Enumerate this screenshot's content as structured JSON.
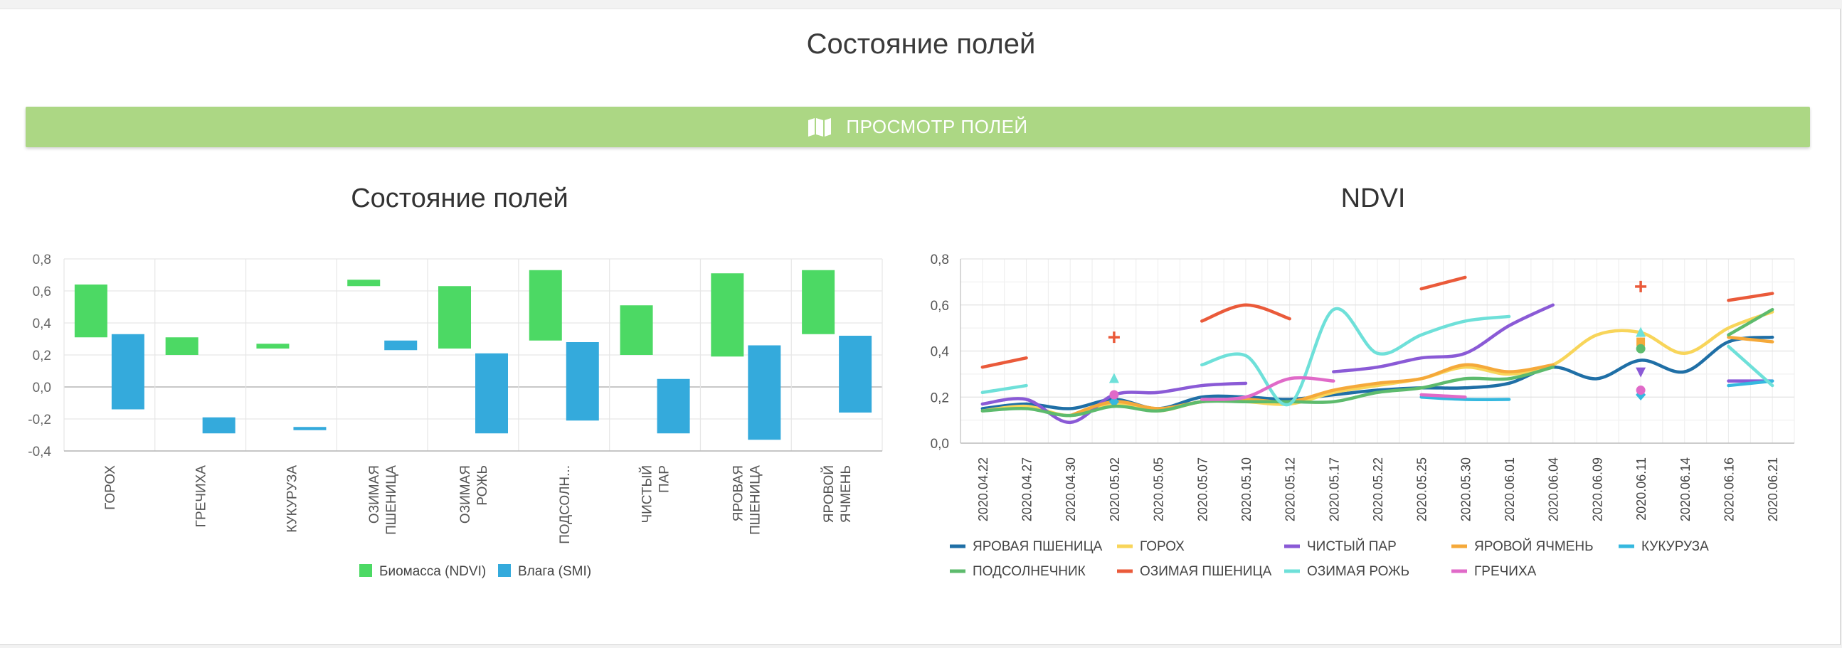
{
  "page_title": "Состояние полей",
  "view_button": {
    "label": "ПРОСМОТР ПОЛЕЙ",
    "icon": "map-icon"
  },
  "chart_data": [
    {
      "type": "bar",
      "title": "Состояние полей",
      "categories": [
        "ГОРОХ",
        "ГРЕЧИХА",
        "КУКУРУЗА",
        "ОЗИМАЯ ПШЕНИЦА",
        "ОЗИМАЯ РОЖЬ",
        "ПОДСОЛН...",
        "ЧИСТЫЙ ПАР",
        "ЯРОВАЯ ПШЕНИЦА",
        "ЯРОВОЙ ЯЧМЕНЬ"
      ],
      "category_lines": [
        [
          "ГОРОХ"
        ],
        [
          "ГРЕЧИХА"
        ],
        [
          "КУКУРУЗА"
        ],
        [
          "ОЗИМАЯ",
          "ПШЕНИЦА"
        ],
        [
          "ОЗИМАЯ",
          "РОЖЬ"
        ],
        [
          "ПОДСОЛН..."
        ],
        [
          "ЧИСТЫЙ",
          "ПАР"
        ],
        [
          "ЯРОВАЯ",
          "ПШЕНИЦА"
        ],
        [
          "ЯРОВОЙ",
          "ЯЧМЕНЬ"
        ]
      ],
      "ylim": [
        -0.4,
        0.8
      ],
      "yticks": [
        "0,8",
        "0,6",
        "0,4",
        "0,2",
        "0,0",
        "-0,2",
        "-0,4"
      ],
      "ytick_values": [
        0.8,
        0.6,
        0.4,
        0.2,
        0.0,
        -0.2,
        -0.4
      ],
      "grid": true,
      "legend_position": "bottom",
      "series": [
        {
          "name": "Биомасса (NDVI)",
          "color": "#4cd964",
          "ranges": [
            [
              0.31,
              0.64
            ],
            [
              0.2,
              0.31
            ],
            [
              0.24,
              0.27
            ],
            [
              0.63,
              0.67
            ],
            [
              0.24,
              0.63
            ],
            [
              0.29,
              0.73
            ],
            [
              0.2,
              0.51
            ],
            [
              0.19,
              0.71
            ],
            [
              0.33,
              0.73
            ]
          ]
        },
        {
          "name": "Влага (SMI)",
          "color": "#34aadc",
          "ranges": [
            [
              -0.14,
              0.33
            ],
            [
              -0.29,
              -0.19
            ],
            [
              -0.27,
              -0.25
            ],
            [
              0.23,
              0.29
            ],
            [
              -0.29,
              0.21
            ],
            [
              -0.21,
              0.28
            ],
            [
              -0.29,
              0.05
            ],
            [
              -0.33,
              0.26
            ],
            [
              -0.16,
              0.32
            ]
          ]
        }
      ]
    },
    {
      "type": "line",
      "title": "NDVI",
      "x": [
        "2020.04.22",
        "2020.04.27",
        "2020.04.30",
        "2020.05.02",
        "2020.05.05",
        "2020.05.07",
        "2020.05.10",
        "2020.05.12",
        "2020.05.17",
        "2020.05.22",
        "2020.05.25",
        "2020.05.30",
        "2020.06.01",
        "2020.06.04",
        "2020.06.09",
        "2020.06.11",
        "2020.06.14",
        "2020.06.16",
        "2020.06.21"
      ],
      "ylim": [
        0,
        0.8
      ],
      "yticks": [
        "0,8",
        "0,6",
        "0,4",
        "0,2",
        "0,0"
      ],
      "ytick_values": [
        0.8,
        0.6,
        0.4,
        0.2,
        0.0
      ],
      "grid": true,
      "legend_position": "bottom",
      "series": [
        {
          "name": "ЯРОВАЯ ПШЕНИЦА",
          "color": "#1f6fa6",
          "marker": "square",
          "values": [
            0.15,
            0.17,
            0.15,
            0.19,
            0.15,
            0.2,
            0.2,
            0.19,
            0.21,
            0.23,
            0.24,
            0.24,
            0.26,
            0.33,
            0.28,
            0.36,
            0.31,
            0.44,
            0.46
          ]
        },
        {
          "name": "ГОРОХ",
          "color": "#f8d55a",
          "marker": "circle",
          "values": [
            0.14,
            0.16,
            0.12,
            0.17,
            0.14,
            0.18,
            0.18,
            0.17,
            0.22,
            0.25,
            0.28,
            0.33,
            0.3,
            0.34,
            0.47,
            0.48,
            0.39,
            0.5,
            0.57
          ]
        },
        {
          "name": "ЧИСТЫЙ ПАР",
          "color": "#8a5ad6",
          "marker": "triangle-down",
          "values": [
            0.17,
            0.19,
            0.09,
            0.21,
            0.22,
            0.25,
            0.26,
            null,
            0.31,
            0.33,
            0.37,
            0.39,
            0.51,
            0.6,
            null,
            0.31,
            null,
            0.27,
            0.27
          ]
        },
        {
          "name": "ЯРОВОЙ ЯЧМЕНЬ",
          "color": "#f5a93a",
          "marker": "square",
          "values": [
            null,
            null,
            0.12,
            0.18,
            0.15,
            0.18,
            0.19,
            0.18,
            0.23,
            0.26,
            0.28,
            0.34,
            0.31,
            0.34,
            null,
            0.44,
            null,
            0.46,
            0.44
          ]
        },
        {
          "name": "КУКУРУЗА",
          "color": "#35b8df",
          "marker": "diamond",
          "values": [
            null,
            null,
            null,
            0.18,
            null,
            null,
            null,
            null,
            null,
            null,
            0.2,
            0.19,
            0.19,
            null,
            null,
            0.21,
            null,
            0.25,
            0.27
          ]
        },
        {
          "name": "ПОДСОЛНЕЧНИК",
          "color": "#5dbb6d",
          "marker": "circle",
          "values": [
            0.14,
            0.15,
            0.12,
            0.16,
            0.14,
            0.18,
            0.18,
            0.18,
            0.18,
            0.22,
            0.24,
            0.28,
            0.28,
            0.33,
            null,
            0.41,
            null,
            0.47,
            0.58
          ]
        },
        {
          "name": "ОЗИМАЯ ПШЕНИЦА",
          "color": "#ea5a3a",
          "marker": "cross",
          "values": [
            0.33,
            0.37,
            null,
            0.46,
            null,
            0.53,
            0.6,
            0.54,
            null,
            null,
            0.67,
            0.72,
            null,
            null,
            null,
            0.68,
            null,
            0.62,
            0.65
          ]
        },
        {
          "name": "ОЗИМАЯ РОЖЬ",
          "color": "#6ee0d9",
          "marker": "triangle-up",
          "values": [
            0.22,
            0.25,
            null,
            0.28,
            null,
            0.34,
            0.38,
            0.17,
            0.58,
            0.39,
            0.47,
            0.53,
            0.55,
            null,
            null,
            0.48,
            null,
            0.42,
            0.25
          ]
        },
        {
          "name": "ГРЕЧИХА",
          "color": "#e06ac8",
          "marker": "circle",
          "values": [
            null,
            null,
            null,
            0.21,
            null,
            0.19,
            0.2,
            0.28,
            0.27,
            null,
            0.21,
            0.2,
            null,
            null,
            null,
            0.23,
            null,
            null,
            null
          ]
        }
      ]
    }
  ]
}
